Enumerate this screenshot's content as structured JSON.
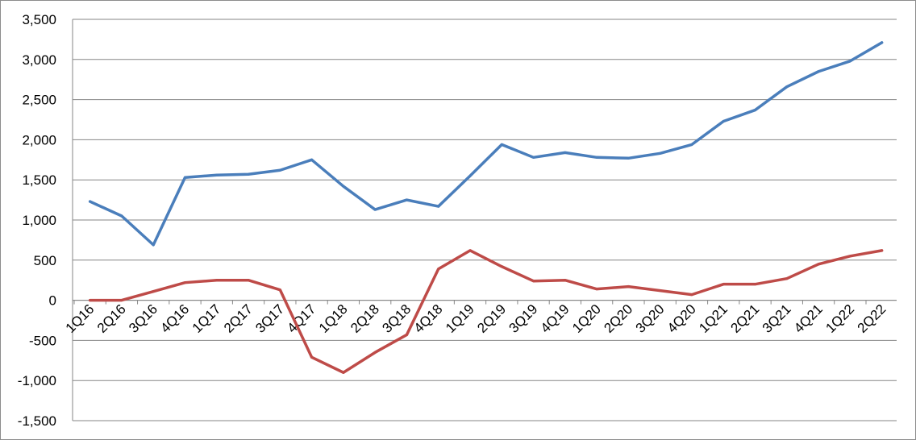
{
  "chart_data": {
    "type": "line",
    "title": "",
    "xlabel": "",
    "ylabel": "",
    "ylim": [
      -1500,
      3500
    ],
    "yticks": [
      -1500,
      -1000,
      -500,
      0,
      500,
      1000,
      1500,
      2000,
      2500,
      3000,
      3500
    ],
    "ytick_labels": [
      "-1,500",
      "-1,000",
      "-500",
      "0",
      "500",
      "1,000",
      "1,500",
      "2,000",
      "2,500",
      "3,000",
      "3,500"
    ],
    "grid": true,
    "legend": "none",
    "categories": [
      "1Q16",
      "2Q16",
      "3Q16",
      "4Q16",
      "1Q17",
      "2Q17",
      "3Q17",
      "4Q17",
      "1Q18",
      "2Q18",
      "3Q18",
      "4Q18",
      "1Q19",
      "2Q19",
      "3Q19",
      "4Q19",
      "1Q20",
      "2Q20",
      "3Q20",
      "4Q20",
      "1Q21",
      "2Q21",
      "3Q21",
      "4Q21",
      "1Q22",
      "2Q22"
    ],
    "series": [
      {
        "color": "#4a7ebb",
        "values": [
          1230,
          1050,
          690,
          1530,
          1560,
          1570,
          1620,
          1750,
          1420,
          1130,
          1250,
          1170,
          1550,
          1940,
          1780,
          1840,
          1780,
          1770,
          1830,
          1940,
          2230,
          2370,
          2660,
          2850,
          2980,
          3210
        ]
      },
      {
        "color": "#be4b48",
        "values": [
          0,
          0,
          110,
          220,
          250,
          250,
          130,
          -710,
          -900,
          -650,
          -430,
          390,
          620,
          420,
          240,
          250,
          140,
          170,
          120,
          70,
          200,
          200,
          270,
          450,
          550,
          620
        ]
      }
    ]
  }
}
